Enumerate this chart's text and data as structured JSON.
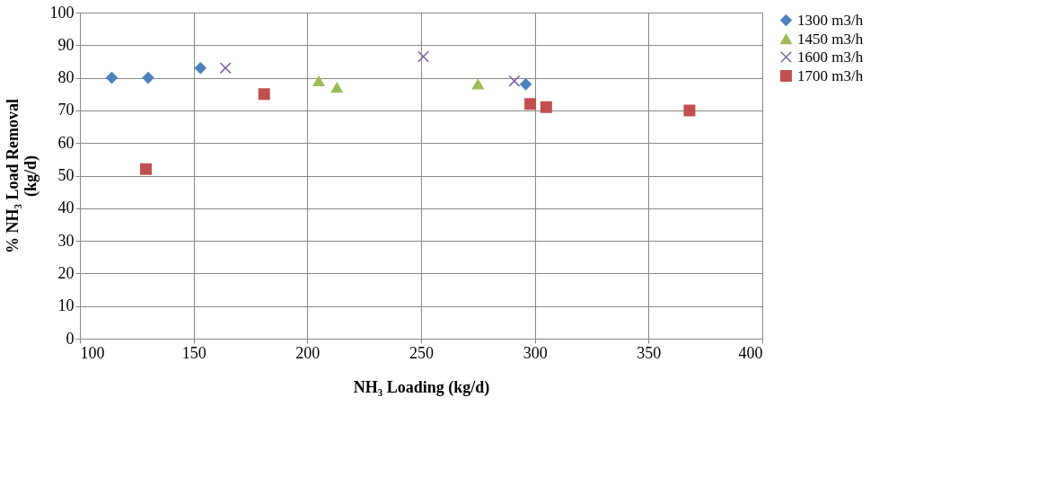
{
  "chart_data": {
    "type": "scatter",
    "xlabel": "NH₃ Loading (kg/d)",
    "ylabel": "% NH₃ Load Removal (kg/d)",
    "xlim": [
      100,
      400
    ],
    "xticks": [
      100,
      150,
      200,
      250,
      300,
      350,
      400
    ],
    "ylim": [
      0,
      100
    ],
    "yticks": [
      0,
      10,
      20,
      30,
      40,
      50,
      60,
      70,
      80,
      90,
      100
    ],
    "grid": true,
    "legend": "right",
    "series": [
      {
        "name": "1300 m3/h",
        "color": "#4f81bd",
        "marker": "diamond",
        "x": [
          114,
          130,
          153,
          296
        ],
        "values": [
          80,
          80,
          83,
          78
        ]
      },
      {
        "name": "1450 m3/h",
        "color": "#9bbb59",
        "marker": "triangle",
        "x": [
          205,
          213,
          275
        ],
        "values": [
          79,
          77,
          78
        ]
      },
      {
        "name": "1600 m3/h",
        "color": "#8064a2",
        "marker": "cross",
        "x": [
          164,
          251,
          291
        ],
        "values": [
          83,
          86.5,
          79
        ]
      },
      {
        "name": "1700 m3/h",
        "color": "#c0504d",
        "marker": "square",
        "x": [
          129,
          181,
          298,
          305,
          368
        ],
        "values": [
          52,
          75,
          72,
          71,
          70
        ]
      }
    ]
  }
}
